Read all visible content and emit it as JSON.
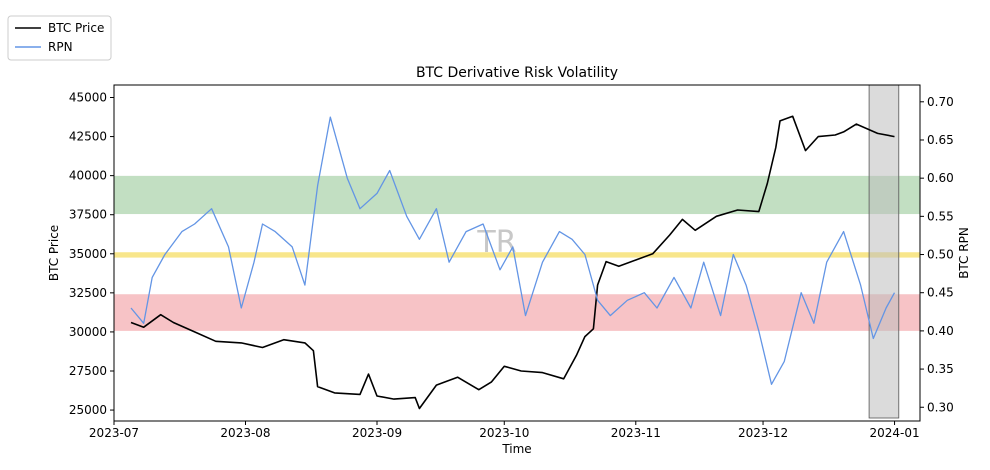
{
  "chart_data": {
    "type": "line",
    "title": "BTC Derivative Risk Volatility",
    "xlabel": "Time",
    "ylabel_left": "BTC Price",
    "ylabel_right": "BTC RPN",
    "watermark": "TR",
    "x_ticks": [
      "2023-07",
      "2023-08",
      "2023-09",
      "2023-10",
      "2023-11",
      "2023-12",
      "2024-01"
    ],
    "y_left_ticks": [
      "25000",
      "27500",
      "30000",
      "32500",
      "35000",
      "37500",
      "40000",
      "42500",
      "45000"
    ],
    "y_right_ticks": [
      "0.30",
      "0.35",
      "0.40",
      "0.45",
      "0.50",
      "0.55",
      "0.60",
      "0.65",
      "0.70"
    ],
    "x_range": [
      "2023-07-01",
      "2024-01-07"
    ],
    "ylim_left": [
      24300,
      45800
    ],
    "ylim_right": [
      0.282,
      0.722
    ],
    "legend_placement": "top-left outside",
    "bands": [
      {
        "name": "green",
        "y_from": 0.553,
        "y_to": 0.603,
        "color": "#a8d2a8"
      },
      {
        "name": "yellow",
        "y_from": 0.496,
        "y_to": 0.503,
        "color": "#f5dc5a"
      },
      {
        "name": "red",
        "y_from": 0.4,
        "y_to": 0.448,
        "color": "#f4a9ae"
      }
    ],
    "highlight": {
      "x_from": "2023-12-26",
      "x_to": "2024-01-02",
      "color": "#bdbdbd"
    },
    "series": [
      {
        "name": "BTC Price",
        "axis": "left",
        "color": "#000000",
        "x": [
          "2023-07-05",
          "2023-07-08",
          "2023-07-12",
          "2023-07-15",
          "2023-07-20",
          "2023-07-25",
          "2023-07-31",
          "2023-08-05",
          "2023-08-10",
          "2023-08-15",
          "2023-08-17",
          "2023-08-18",
          "2023-08-22",
          "2023-08-28",
          "2023-08-30",
          "2023-09-01",
          "2023-09-05",
          "2023-09-10",
          "2023-09-11",
          "2023-09-15",
          "2023-09-20",
          "2023-09-25",
          "2023-09-28",
          "2023-10-01",
          "2023-10-05",
          "2023-10-10",
          "2023-10-15",
          "2023-10-18",
          "2023-10-20",
          "2023-10-22",
          "2023-10-23",
          "2023-10-25",
          "2023-10-28",
          "2023-11-01",
          "2023-11-05",
          "2023-11-09",
          "2023-11-12",
          "2023-11-15",
          "2023-11-20",
          "2023-11-25",
          "2023-11-30",
          "2023-12-02",
          "2023-12-04",
          "2023-12-05",
          "2023-12-08",
          "2023-12-11",
          "2023-12-14",
          "2023-12-18",
          "2023-12-20",
          "2023-12-23",
          "2023-12-28",
          "2024-01-01"
        ],
        "values": [
          30600,
          30300,
          31100,
          30600,
          30000,
          29400,
          29300,
          29000,
          29500,
          29300,
          28800,
          26500,
          26100,
          26000,
          27300,
          25900,
          25700,
          25800,
          25100,
          26600,
          27100,
          26300,
          26800,
          27800,
          27500,
          27400,
          27000,
          28500,
          29700,
          30200,
          33000,
          34500,
          34200,
          34600,
          35000,
          36200,
          37200,
          36500,
          37400,
          37800,
          37700,
          39500,
          41800,
          43500,
          43800,
          41600,
          42500,
          42600,
          42800,
          43300,
          42700,
          42500
        ]
      },
      {
        "name": "RPN",
        "axis": "right",
        "color": "#6395e5",
        "x": [
          "2023-07-05",
          "2023-07-08",
          "2023-07-10",
          "2023-07-13",
          "2023-07-17",
          "2023-07-20",
          "2023-07-24",
          "2023-07-28",
          "2023-07-31",
          "2023-08-03",
          "2023-08-05",
          "2023-08-08",
          "2023-08-12",
          "2023-08-15",
          "2023-08-18",
          "2023-08-21",
          "2023-08-25",
          "2023-08-28",
          "2023-09-01",
          "2023-09-04",
          "2023-09-08",
          "2023-09-11",
          "2023-09-15",
          "2023-09-18",
          "2023-09-22",
          "2023-09-26",
          "2023-09-30",
          "2023-10-03",
          "2023-10-06",
          "2023-10-10",
          "2023-10-14",
          "2023-10-17",
          "2023-10-20",
          "2023-10-23",
          "2023-10-26",
          "2023-10-30",
          "2023-11-03",
          "2023-11-06",
          "2023-11-10",
          "2023-11-14",
          "2023-11-17",
          "2023-11-21",
          "2023-11-24",
          "2023-11-27",
          "2023-11-30",
          "2023-12-03",
          "2023-12-06",
          "2023-12-10",
          "2023-12-13",
          "2023-12-16",
          "2023-12-20",
          "2023-12-24",
          "2023-12-27",
          "2023-12-30",
          "2024-01-01"
        ],
        "values": [
          0.43,
          0.41,
          0.47,
          0.5,
          0.53,
          0.54,
          0.56,
          0.51,
          0.43,
          0.49,
          0.54,
          0.53,
          0.51,
          0.46,
          0.59,
          0.68,
          0.6,
          0.56,
          0.58,
          0.61,
          0.55,
          0.52,
          0.56,
          0.49,
          0.53,
          0.54,
          0.48,
          0.51,
          0.42,
          0.49,
          0.53,
          0.52,
          0.5,
          0.44,
          0.42,
          0.44,
          0.45,
          0.43,
          0.47,
          0.43,
          0.49,
          0.42,
          0.5,
          0.46,
          0.4,
          0.33,
          0.36,
          0.45,
          0.41,
          0.49,
          0.53,
          0.46,
          0.39,
          0.43,
          0.45
        ]
      }
    ]
  }
}
